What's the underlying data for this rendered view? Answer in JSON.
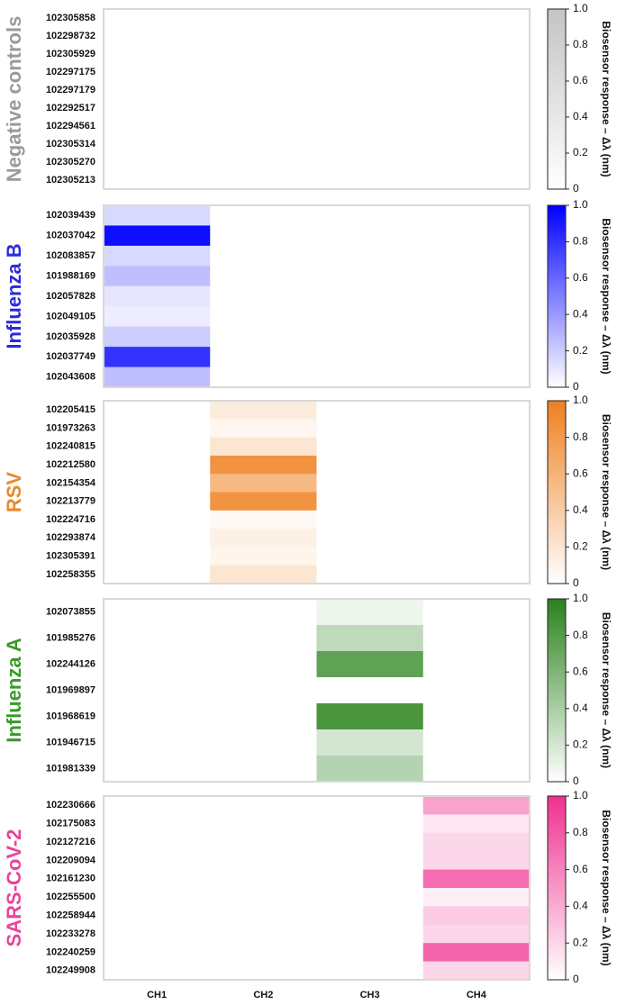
{
  "chart_data": [
    {
      "type": "heatmap",
      "title": "Negative controls",
      "title_color": "#9a9a9a",
      "rows": [
        "102305858",
        "102298732",
        "102305929",
        "102297175",
        "102297179",
        "102292517",
        "102294561",
        "102305314",
        "102305270",
        "102305213"
      ],
      "values": [
        [
          0,
          0,
          0,
          0
        ],
        [
          0,
          0,
          0,
          0
        ],
        [
          0,
          0,
          0,
          0
        ],
        [
          0,
          0,
          0,
          0
        ],
        [
          0,
          0,
          0,
          0
        ],
        [
          0,
          0,
          0,
          0
        ],
        [
          0,
          0,
          0,
          0
        ],
        [
          0,
          0,
          0,
          0
        ],
        [
          0,
          0,
          0,
          0
        ],
        [
          0,
          0,
          0,
          0
        ]
      ],
      "color_low": "#ffffff",
      "color_high": "#c4c4c4",
      "clim": [
        0,
        1
      ],
      "cticks": [
        0,
        0.2,
        0.4,
        0.6,
        0.8,
        {
          "value": 1,
          "label": "1.0"
        }
      ],
      "colorbar_label": "Biosensor response – Δλ (nm)"
    },
    {
      "type": "heatmap",
      "title": "Influenza B",
      "title_color": "#2b2bdc",
      "rows": [
        "102039439",
        "102037042",
        "102083857",
        "101988169",
        "102057828",
        "102049105",
        "102035928",
        "102037749",
        "102043608"
      ],
      "values": [
        [
          0.15,
          0,
          0,
          0
        ],
        [
          0.95,
          0,
          0,
          0
        ],
        [
          0.15,
          0,
          0,
          0
        ],
        [
          0.25,
          0,
          0,
          0
        ],
        [
          0.1,
          0,
          0,
          0
        ],
        [
          0.07,
          0,
          0,
          0
        ],
        [
          0.2,
          0,
          0,
          0
        ],
        [
          0.8,
          0,
          0,
          0
        ],
        [
          0.25,
          0,
          0,
          0
        ]
      ],
      "color_low": "#ffffff",
      "color_high": "#0000ff",
      "clim": [
        0,
        1
      ],
      "cticks": [
        0,
        0.2,
        0.4,
        0.6,
        0.8,
        {
          "value": 1,
          "label": "1.0"
        }
      ],
      "colorbar_label": "Biosensor response – Δλ (nm)"
    },
    {
      "type": "heatmap",
      "title": "RSV",
      "title_color": "#e8892b",
      "rows": [
        "102205415",
        "101973263",
        "102240815",
        "102212580",
        "102154354",
        "102213779",
        "102224716",
        "102293874",
        "102305391",
        "102258355"
      ],
      "values": [
        [
          0,
          0.15,
          0,
          0
        ],
        [
          0,
          0.07,
          0,
          0
        ],
        [
          0,
          0.2,
          0,
          0
        ],
        [
          0,
          0.85,
          0,
          0
        ],
        [
          0,
          0.55,
          0,
          0
        ],
        [
          0,
          0.85,
          0,
          0
        ],
        [
          0,
          0.05,
          0,
          0
        ],
        [
          0,
          0.12,
          0,
          0
        ],
        [
          0,
          0.08,
          0,
          0
        ],
        [
          0,
          0.2,
          0,
          0
        ]
      ],
      "color_low": "#ffffff",
      "color_high": "#ee8020",
      "clim": [
        0,
        1
      ],
      "cticks": [
        0,
        0.2,
        0.4,
        0.6,
        0.8,
        {
          "value": 1,
          "label": "1.0"
        }
      ],
      "colorbar_label": "Biosensor response – Δλ (nm)"
    },
    {
      "type": "heatmap",
      "title": "Influenza A",
      "title_color": "#3a9a2a",
      "rows": [
        "102073855",
        "101985276",
        "102244126",
        "101969897",
        "101968619",
        "101946715",
        "101981339"
      ],
      "values": [
        [
          0,
          0,
          0.08,
          0
        ],
        [
          0,
          0,
          0.3,
          0
        ],
        [
          0,
          0,
          0.75,
          0
        ],
        [
          0,
          0,
          0,
          0
        ],
        [
          0,
          0,
          0.85,
          0
        ],
        [
          0,
          0,
          0.2,
          0
        ],
        [
          0,
          0,
          0.35,
          0
        ]
      ],
      "color_low": "#ffffff",
      "color_high": "#2a821c",
      "clim": [
        0,
        1
      ],
      "cticks": [
        0,
        0.2,
        0.4,
        0.6,
        0.8,
        {
          "value": 1,
          "label": "1.0"
        }
      ],
      "colorbar_label": "Biosensor response – Δλ (nm)"
    },
    {
      "type": "heatmap",
      "title": "SARS-CoV-2",
      "title_color": "#e8439a",
      "rows": [
        "102230666",
        "102175083",
        "102127216",
        "102209094",
        "102161230",
        "102255500",
        "102258944",
        "102233278",
        "102240259",
        "102249908"
      ],
      "values": [
        [
          0,
          0,
          0,
          0.45
        ],
        [
          0,
          0,
          0,
          0.12
        ],
        [
          0,
          0,
          0,
          0.2
        ],
        [
          0,
          0,
          0,
          0.2
        ],
        [
          0,
          0,
          0,
          0.7
        ],
        [
          0,
          0,
          0,
          0.08
        ],
        [
          0,
          0,
          0,
          0.25
        ],
        [
          0,
          0,
          0,
          0.2
        ],
        [
          0,
          0,
          0,
          0.75
        ],
        [
          0,
          0,
          0,
          0.2
        ]
      ],
      "columns": [
        "CH1",
        "CH2",
        "CH3",
        "CH4"
      ],
      "color_low": "#ffffff",
      "color_high": "#f0308f",
      "clim": [
        0,
        1
      ],
      "cticks": [
        0,
        0.2,
        0.4,
        0.6,
        0.8,
        {
          "value": 1,
          "label": "1.0"
        }
      ],
      "colorbar_label": "Biosensor response – Δλ (nm)"
    }
  ]
}
